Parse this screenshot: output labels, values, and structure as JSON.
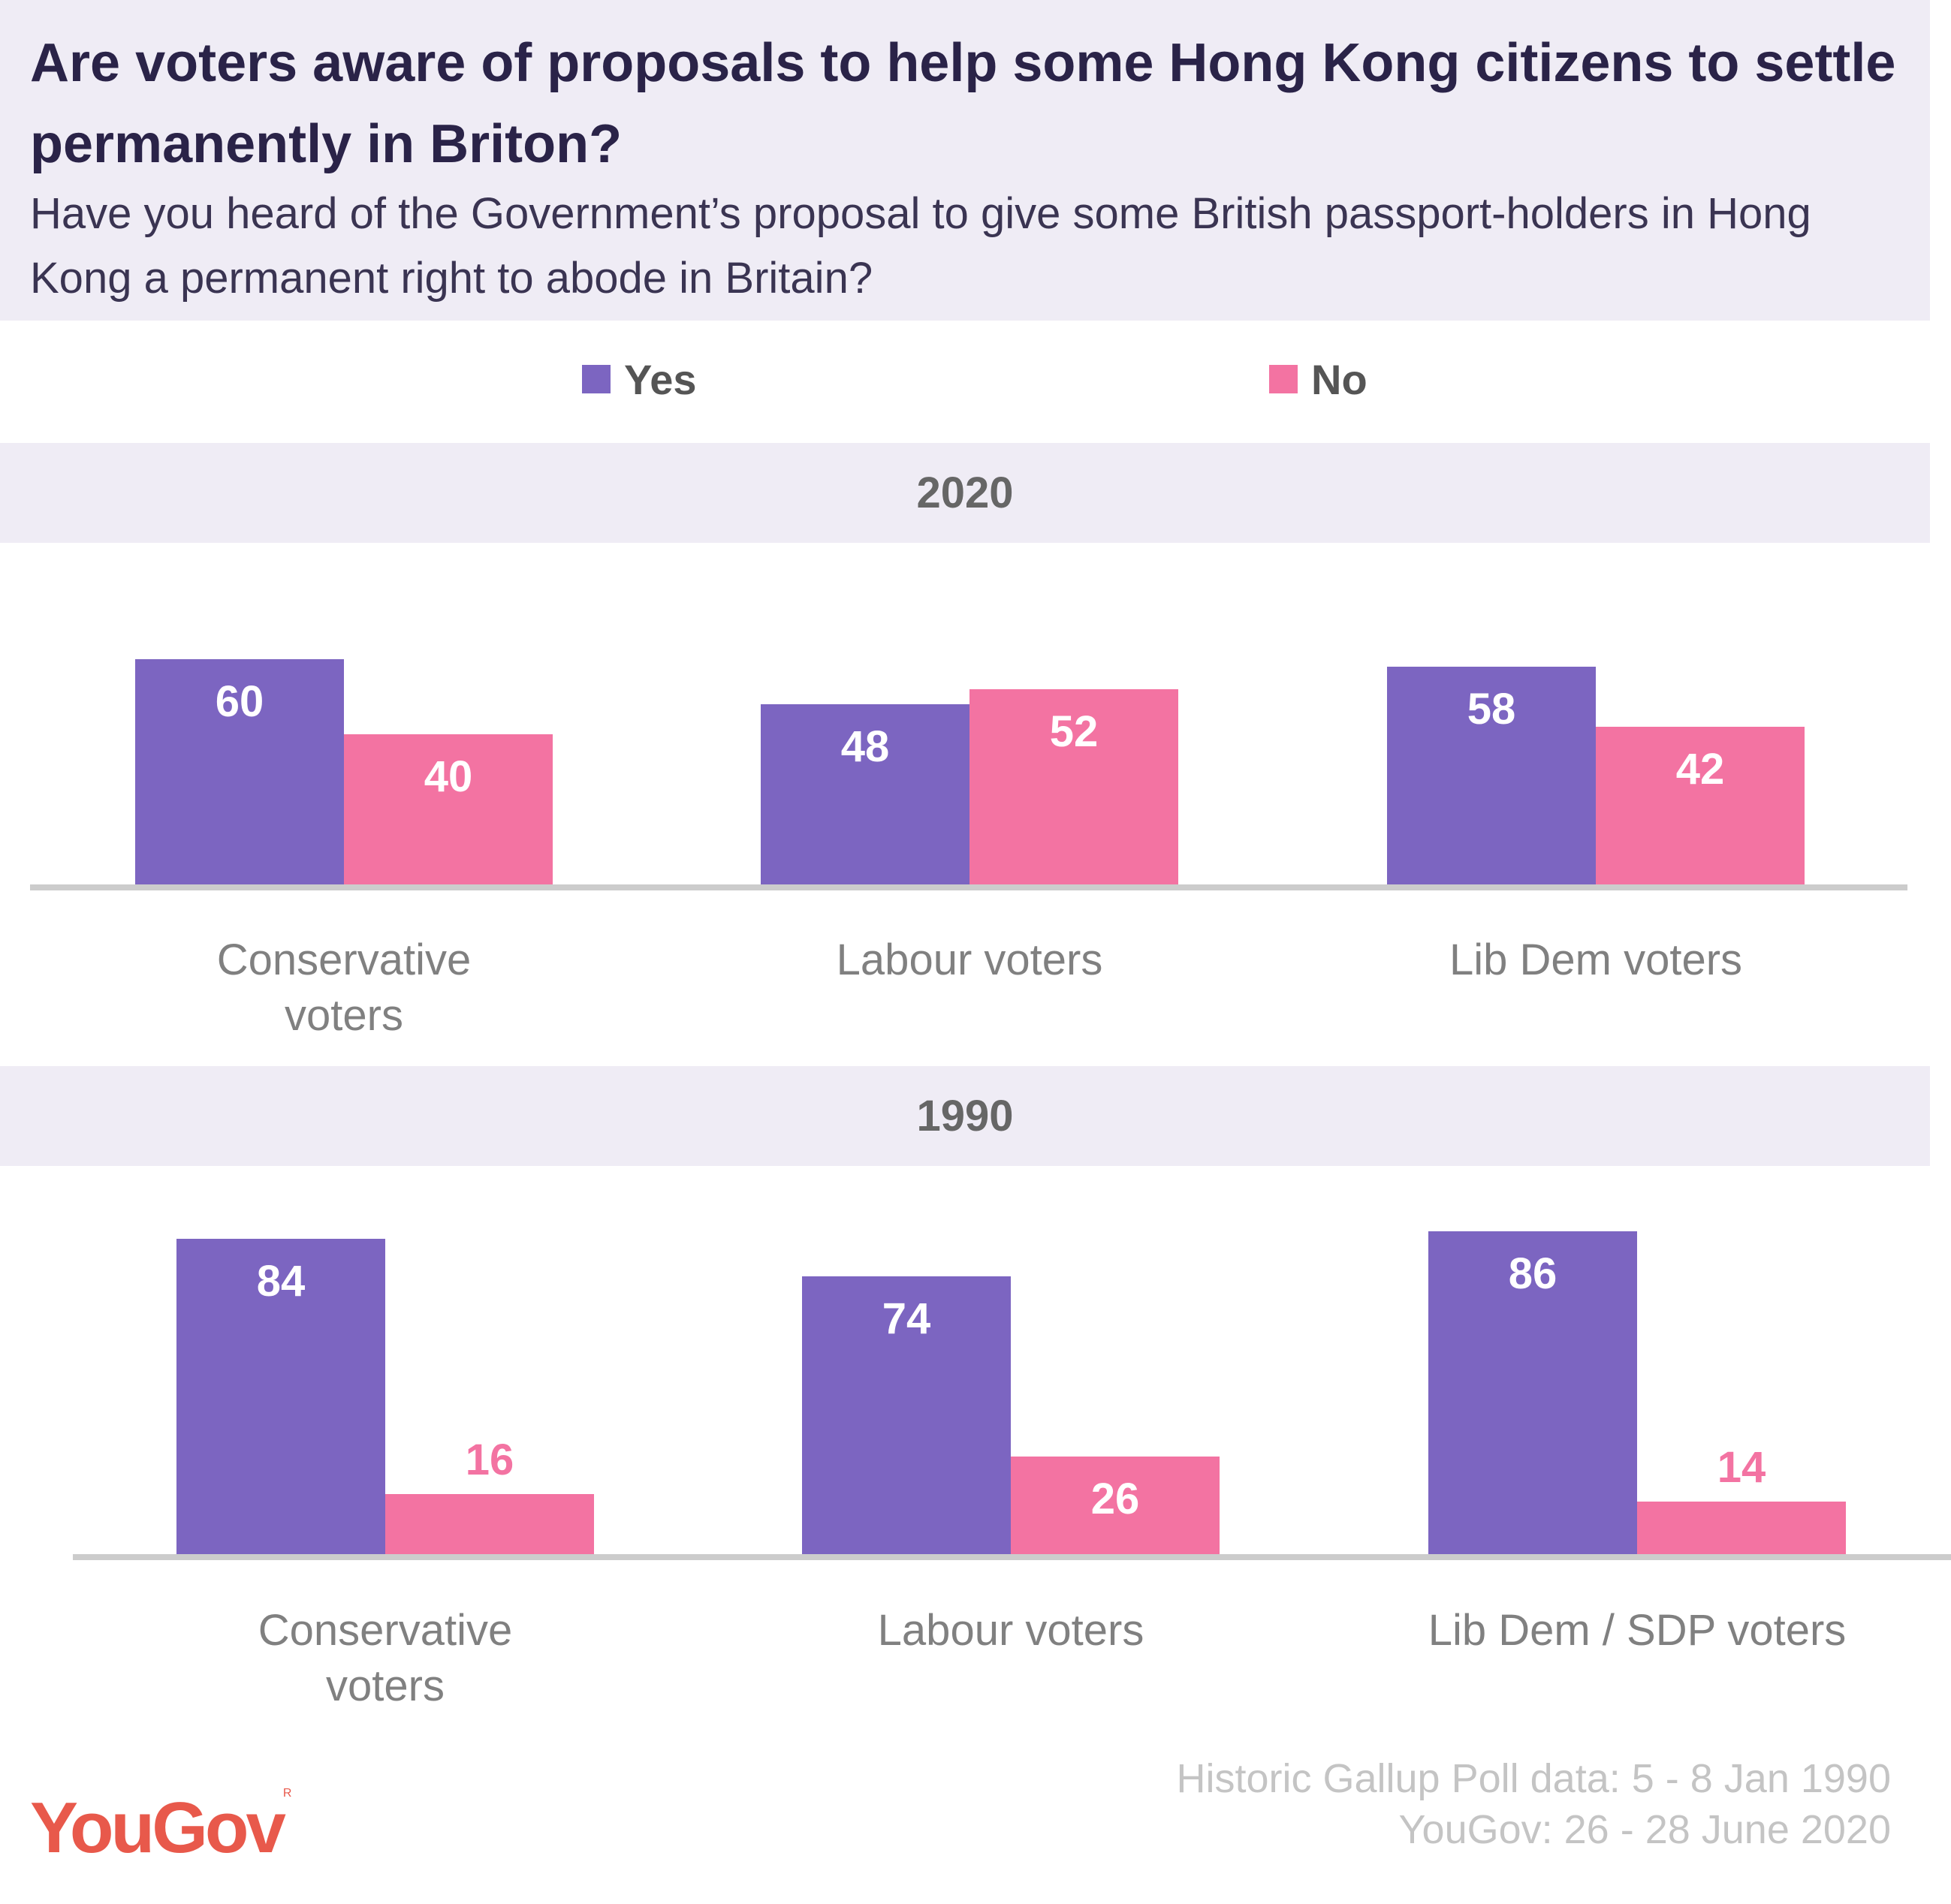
{
  "header": {
    "title": "Are voters aware of proposals to help some Hong Kong citizens to settle permanently in Briton?",
    "subtitle": "Have you heard of the Government’s proposal to give some British passport-holders in Hong Kong a permanent right to abode in Britain?"
  },
  "legend": [
    {
      "label": "Yes",
      "color": "#7c65c1"
    },
    {
      "label": "No",
      "color": "#f373a2"
    }
  ],
  "chart_data": [
    {
      "type": "bar",
      "title": "2020",
      "categories": [
        "Conservative voters",
        "Labour voters",
        "Lib Dem voters"
      ],
      "series": [
        {
          "name": "Yes",
          "values": [
            60,
            48,
            58
          ],
          "color": "#7c65c1"
        },
        {
          "name": "No",
          "values": [
            40,
            52,
            42
          ],
          "color": "#f373a2"
        }
      ],
      "ylim": [
        0,
        100
      ],
      "grid": false,
      "legend": "top-center"
    },
    {
      "type": "bar",
      "title": "1990",
      "categories": [
        "Conservative voters",
        "Labour voters",
        "Lib Dem / SDP voters"
      ],
      "series": [
        {
          "name": "Yes",
          "values": [
            84,
            74,
            86
          ],
          "color": "#7c65c1"
        },
        {
          "name": "No",
          "values": [
            16,
            26,
            14
          ],
          "color": "#f373a2"
        }
      ],
      "ylim": [
        0,
        100
      ],
      "grid": false,
      "legend": "top-center"
    }
  ],
  "footer": {
    "source_line1": "Historic Gallup Poll data: 5 - 8 Jan 1990",
    "source_line2": "YouGov: 26 - 28 June 2020",
    "logo_text": "YouGov",
    "logo_mark": "R",
    "logo_color": "#e8594b"
  }
}
